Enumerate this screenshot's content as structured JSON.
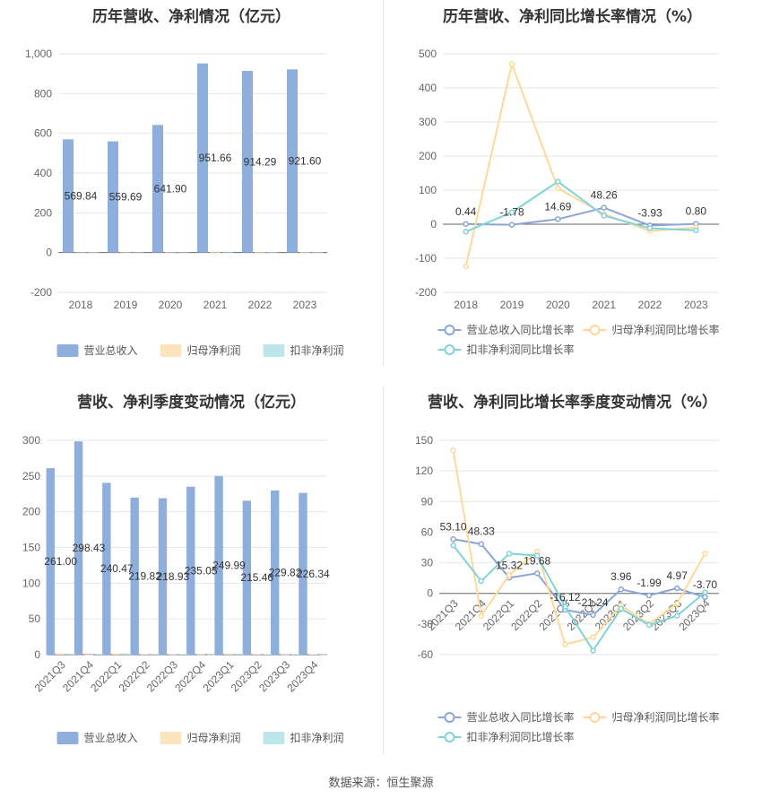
{
  "source": "数据来源：恒生聚源",
  "colors": {
    "revenue": "#8eaedc",
    "net_profit": "#fce4bd",
    "deducted": "#bde6ea",
    "rev_growth": "#8aa6d6",
    "np_growth": "#fcd999",
    "ded_growth": "#7fd3d9"
  },
  "chart_data": [
    {
      "type": "bar",
      "title": "历年营收、净利情况（亿元）",
      "categories": [
        "2018",
        "2019",
        "2020",
        "2021",
        "2022",
        "2023"
      ],
      "ylim": [
        -200,
        1000
      ],
      "yticks": [
        -200,
        0,
        200,
        400,
        600,
        800,
        1000
      ],
      "ytick_labels": [
        "-200",
        "0",
        "200",
        "400",
        "600",
        "800",
        "1,000"
      ],
      "series": [
        {
          "name": "营业总收入",
          "color": "#8eaedc",
          "values": [
            569.84,
            559.69,
            641.9,
            951.66,
            914.29,
            921.6
          ],
          "labels": [
            "569.84",
            "559.69",
            "641.90",
            "951.66",
            "914.29",
            "921.60"
          ]
        },
        {
          "name": "归母净利润",
          "color": "#fce4bd",
          "values": [
            -0.3,
            0.5,
            1.9,
            4.5,
            3.1,
            3.0
          ]
        },
        {
          "name": "扣非净利润",
          "color": "#bde6ea",
          "values": [
            0.7,
            0.3,
            2.4,
            4.2,
            2.8,
            2.6
          ]
        }
      ],
      "legend_position": "bottom"
    },
    {
      "type": "line",
      "title": "历年营收、净利同比增长率情况（%）",
      "categories": [
        "2018",
        "2019",
        "2020",
        "2021",
        "2022",
        "2023"
      ],
      "ylim": [
        -200,
        500
      ],
      "yticks": [
        -200,
        -100,
        0,
        100,
        200,
        300,
        400,
        500
      ],
      "ytick_labels": [
        "-200",
        "-100",
        "0",
        "100",
        "200",
        "300",
        "400",
        "500"
      ],
      "series": [
        {
          "name": "营业总收入同比增长率",
          "color": "#8aa6d6",
          "values": [
            0.44,
            -1.78,
            14.69,
            48.26,
            -3.93,
            0.8
          ],
          "labels": [
            "0.44",
            "-1.78",
            "14.69",
            "48.26",
            "-3.93",
            "0.80"
          ]
        },
        {
          "name": "归母净利润同比增长率",
          "color": "#fcd999",
          "values": [
            -124,
            470,
            105,
            30,
            -20,
            -10
          ]
        },
        {
          "name": "扣非净利润同比增长率",
          "color": "#7fd3d9",
          "values": [
            -22,
            35,
            125,
            25,
            -12,
            -18
          ]
        }
      ],
      "legend_position": "bottom"
    },
    {
      "type": "bar",
      "title": "营收、净利季度变动情况（亿元）",
      "categories": [
        "2021Q3",
        "2021Q4",
        "2022Q1",
        "2022Q2",
        "2022Q3",
        "2022Q4",
        "2023Q1",
        "2023Q2",
        "2023Q3",
        "2023Q4"
      ],
      "ylim": [
        0,
        300
      ],
      "yticks": [
        0,
        50,
        100,
        150,
        200,
        250,
        300
      ],
      "ytick_labels": [
        "0",
        "50",
        "100",
        "150",
        "200",
        "250",
        "300"
      ],
      "series": [
        {
          "name": "营业总收入",
          "color": "#8eaedc",
          "values": [
            261.0,
            298.43,
            240.47,
            219.82,
            218.93,
            235.05,
            249.99,
            215.46,
            229.82,
            226.34
          ],
          "labels": [
            "261.00",
            "298.43",
            "240.47",
            "219.82",
            "218.93",
            "235.05",
            "249.99",
            "215.46",
            "229.82",
            "226.34"
          ]
        },
        {
          "name": "归母净利润",
          "color": "#fce4bd",
          "values": [
            2.0,
            0.1,
            1.8,
            1.2,
            0.5,
            0.4,
            1.6,
            0.9,
            0.4,
            0.7
          ]
        },
        {
          "name": "扣非净利润",
          "color": "#bde6ea",
          "values": [
            1.6,
            1.1,
            1.7,
            1.1,
            0.9,
            0.3,
            1.3,
            0.7,
            0.7,
            0.3
          ]
        }
      ],
      "legend_position": "bottom"
    },
    {
      "type": "line",
      "title": "营收、净利同比增长率季度变动情况（%）",
      "categories": [
        "2021Q3",
        "2021Q4",
        "2022Q1",
        "2022Q2",
        "2022Q3",
        "2022Q4",
        "2023Q1",
        "2023Q2",
        "2023Q3",
        "2023Q4"
      ],
      "ylim": [
        -60,
        150
      ],
      "yticks": [
        -60,
        -30,
        0,
        30,
        60,
        90,
        120,
        150
      ],
      "ytick_labels": [
        "-60",
        "-30",
        "0",
        "30",
        "60",
        "90",
        "120",
        "150"
      ],
      "series": [
        {
          "name": "营业总收入同比增长率",
          "color": "#8aa6d6",
          "values": [
            53.1,
            48.33,
            15.32,
            19.68,
            -16.12,
            -21.24,
            3.96,
            -1.99,
            4.97,
            -3.7
          ],
          "labels": [
            "53.10",
            "48.33",
            "15.32",
            "19.68",
            "-16.12",
            "-21.24",
            "3.96",
            "-1.99",
            "4.97",
            "-3.70"
          ]
        },
        {
          "name": "归母净利润同比增长率",
          "color": "#fcd999",
          "values": [
            140,
            -22,
            18,
            41,
            -50,
            -43,
            -12,
            -30,
            -10,
            39
          ]
        },
        {
          "name": "扣非净利润同比增长率",
          "color": "#7fd3d9",
          "values": [
            47,
            12,
            39,
            37,
            -13,
            -56,
            -15,
            -31,
            -22,
            1
          ]
        }
      ],
      "legend_position": "bottom"
    }
  ]
}
